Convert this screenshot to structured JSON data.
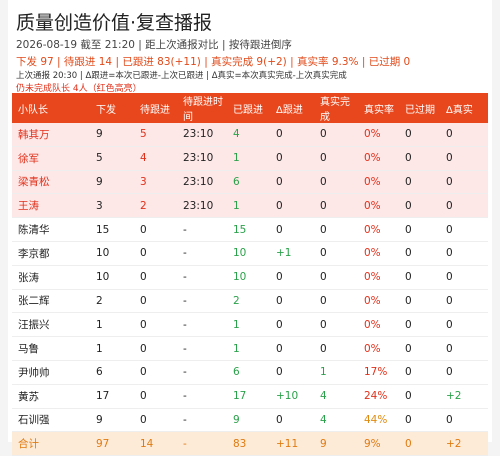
{
  "header": {
    "title": "质量创造价值·复查播报",
    "subtitle": "2026-08-19 截至 21:20 | 距上次通报对比 | 按待跟进倒序",
    "summary": "下发 97 | 待跟进 14 | 已跟进 83(+11) | 真实完成 9(+2) | 真实率 9.3% | 已过期 0",
    "note": "上次通报 20:30 | Δ跟进=本次已跟进-上次已跟进 | Δ真实=本次真实完成-上次真实完成",
    "alert": "仍未完成队长 4人（红色高亮）"
  },
  "table": {
    "columns": [
      "小队长",
      "下发",
      "待跟进",
      "待跟进时间",
      "已跟进",
      "Δ跟进",
      "真实完成",
      "真实率",
      "已过期",
      "Δ真实"
    ],
    "rows": [
      [
        "韩其万",
        "9",
        "5",
        "23:10",
        "4",
        "0",
        "0",
        "0%",
        "0",
        "0"
      ],
      [
        "徐军",
        "5",
        "4",
        "23:10",
        "1",
        "0",
        "0",
        "0%",
        "0",
        "0"
      ],
      [
        "梁青松",
        "9",
        "3",
        "23:10",
        "6",
        "0",
        "0",
        "0%",
        "0",
        "0"
      ],
      [
        "王涛",
        "3",
        "2",
        "23:10",
        "1",
        "0",
        "0",
        "0%",
        "0",
        "0"
      ],
      [
        "陈清华",
        "15",
        "0",
        "-",
        "15",
        "0",
        "0",
        "0%",
        "0",
        "0"
      ],
      [
        "李京都",
        "10",
        "0",
        "-",
        "10",
        "+1",
        "0",
        "0%",
        "0",
        "0"
      ],
      [
        "张涛",
        "10",
        "0",
        "-",
        "10",
        "0",
        "0",
        "0%",
        "0",
        "0"
      ],
      [
        "张二辉",
        "2",
        "0",
        "-",
        "2",
        "0",
        "0",
        "0%",
        "0",
        "0"
      ],
      [
        "汪振兴",
        "1",
        "0",
        "-",
        "1",
        "0",
        "0",
        "0%",
        "0",
        "0"
      ],
      [
        "马鲁",
        "1",
        "0",
        "-",
        "1",
        "0",
        "0",
        "0%",
        "0",
        "0"
      ],
      [
        "尹帅帅",
        "6",
        "0",
        "-",
        "6",
        "0",
        "1",
        "17%",
        "0",
        "0"
      ],
      [
        "黄苏",
        "17",
        "0",
        "-",
        "17",
        "+10",
        "4",
        "24%",
        "0",
        "+2"
      ],
      [
        "石训强",
        "9",
        "0",
        "-",
        "9",
        "0",
        "4",
        "44%",
        "0",
        "0"
      ]
    ],
    "total": [
      "合计",
      "97",
      "14",
      "-",
      "83",
      "+11",
      "9",
      "9%",
      "0",
      "+2"
    ]
  }
}
